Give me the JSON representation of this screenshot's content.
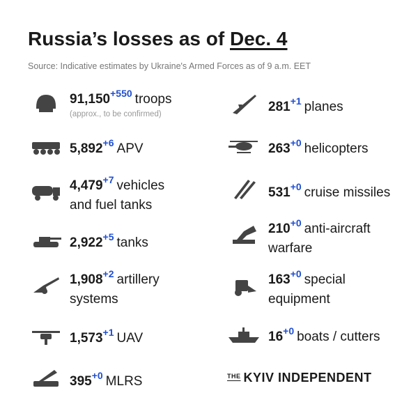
{
  "header": {
    "title": "Russia’s losses as of",
    "date": "Dec. 4",
    "source": "Source: Indicative estimates by Ukraine's Armed Forces as of 9 a.m. EET"
  },
  "left": [
    {
      "value": "91,150",
      "delta": "+550",
      "label": [
        "troops"
      ],
      "note": "(approx., to be confirmed)"
    },
    {
      "value": "5,892",
      "delta": "+6",
      "label": [
        "APV"
      ]
    },
    {
      "value": "4,479",
      "delta": "+7",
      "label": [
        "vehicles",
        "and fuel tanks"
      ]
    },
    {
      "value": "2,922",
      "delta": "+5",
      "label": [
        "tanks"
      ]
    },
    {
      "value": "1,908",
      "delta": "+2",
      "label": [
        "artillery",
        "systems"
      ]
    },
    {
      "value": "1,573",
      "delta": "+1",
      "label": [
        "UAV"
      ]
    },
    {
      "value": "395",
      "delta": "+0",
      "label": [
        "MLRS"
      ]
    }
  ],
  "right": [
    {
      "value": "281",
      "delta": "+1",
      "label": [
        "planes"
      ]
    },
    {
      "value": "263",
      "delta": "+0",
      "label": [
        "helicopters"
      ]
    },
    {
      "value": "531",
      "delta": "+0",
      "label": [
        "cruise missiles"
      ]
    },
    {
      "value": "210",
      "delta": "+0",
      "label": [
        "anti-aircraft",
        "warfare"
      ]
    },
    {
      "value": "163",
      "delta": "+0",
      "label": [
        "special",
        "equipment"
      ]
    },
    {
      "value": "16",
      "delta": "+0",
      "label": [
        "boats / cutters"
      ]
    }
  ],
  "logo": {
    "the": "THE",
    "name": "KYIV INDEPENDENT"
  }
}
